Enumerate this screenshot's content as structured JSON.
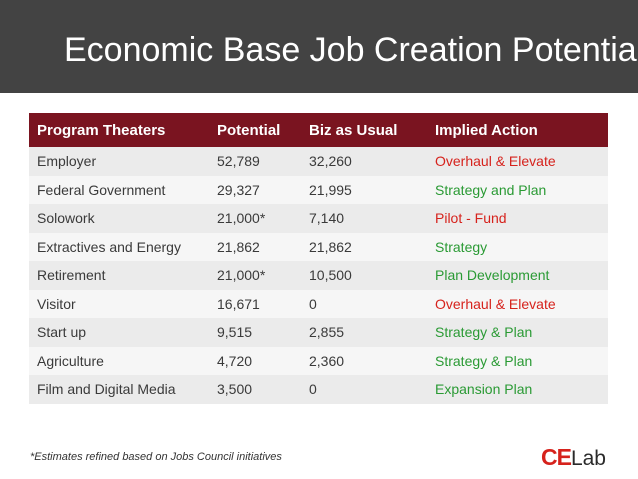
{
  "slide": {
    "title": "Economic Base Job Creation Potential",
    "footnote": "*Estimates refined based on Jobs Council initiatives",
    "logo": {
      "part1": "CE",
      "part2": "Lab"
    }
  },
  "colors": {
    "title_bar": "#434343",
    "header_bg": "#7a1420",
    "action_red": "#d6221c",
    "action_green": "#2a9a34"
  },
  "table": {
    "headers": [
      "Program Theaters",
      "Potential",
      "Biz as Usual",
      "Implied Action"
    ],
    "rows": [
      {
        "theater": "Employer",
        "potential": "52,789",
        "biz": "32,260",
        "action": "Overhaul & Elevate",
        "action_color": "red"
      },
      {
        "theater": "Federal Government",
        "potential": "29,327",
        "biz": "21,995",
        "action": "Strategy and Plan",
        "action_color": "green"
      },
      {
        "theater": "Solowork",
        "potential": "21,000*",
        "biz": "7,140",
        "action": "Pilot - Fund",
        "action_color": "red"
      },
      {
        "theater": "Extractives and Energy",
        "potential": "21,862",
        "biz": "21,862",
        "action": "Strategy",
        "action_color": "green"
      },
      {
        "theater": "Retirement",
        "potential": "21,000*",
        "biz": "10,500",
        "action": "Plan Development",
        "action_color": "green"
      },
      {
        "theater": "Visitor",
        "potential": "16,671",
        "biz": "0",
        "action": "Overhaul & Elevate",
        "action_color": "red"
      },
      {
        "theater": "Start up",
        "potential": "9,515",
        "biz": "2,855",
        "action": "Strategy & Plan",
        "action_color": "green"
      },
      {
        "theater": "Agriculture",
        "potential": "4,720",
        "biz": "2,360",
        "action": "Strategy & Plan",
        "action_color": "green"
      },
      {
        "theater": "Film and Digital Media",
        "potential": "3,500",
        "biz": "0",
        "action": "Expansion Plan",
        "action_color": "green"
      }
    ]
  }
}
